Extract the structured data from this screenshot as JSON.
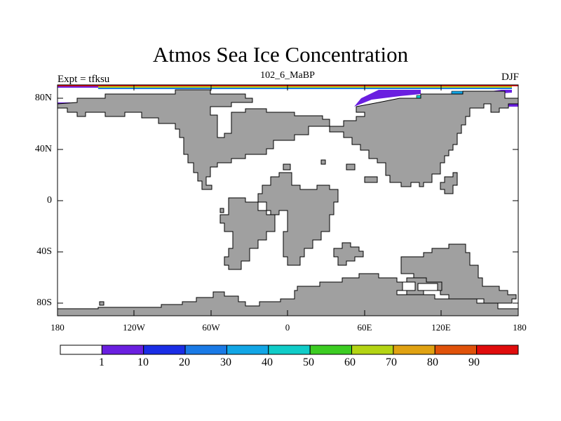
{
  "title": "Atmos Sea Ice Concentration",
  "left_label": "Expt = tfksu",
  "center_label": "102_6_MaBP",
  "right_label": "DJF",
  "map": {
    "projection": "cylindrical equidistant",
    "lon_range": [
      -180,
      180
    ],
    "lat_range": [
      -90,
      90
    ],
    "land_color": "#a0a0a0",
    "ocean_color": "#ffffff",
    "y_ticks": [
      "80N",
      "40N",
      "0",
      "40S",
      "80S"
    ],
    "x_ticks": [
      "180",
      "120W",
      "60W",
      "0",
      "60E",
      "120E",
      "180"
    ]
  },
  "colorbar": {
    "colors": [
      "#ffffff",
      "#6a1fe0",
      "#1a2de6",
      "#1a7ae6",
      "#12a6e6",
      "#10ccc8",
      "#3ccc22",
      "#b4d414",
      "#e0a212",
      "#e0520a",
      "#e00c0c"
    ],
    "labels": [
      "1",
      "10",
      "20",
      "30",
      "40",
      "50",
      "60",
      "70",
      "80",
      "90"
    ]
  }
}
